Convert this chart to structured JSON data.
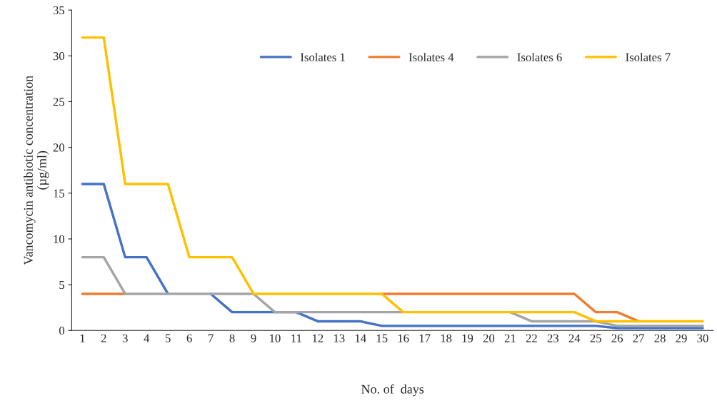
{
  "chart_data": {
    "type": "line",
    "xlabel": "No. of  days",
    "ylabel": "Vancomycin antibiotic concentration\n(µg/ml)",
    "categories": [
      "1",
      "2",
      "3",
      "4",
      "5",
      "6",
      "7",
      "8",
      "9",
      "10",
      "11",
      "12",
      "13",
      "14",
      "15",
      "16",
      "17",
      "18",
      "19",
      "20",
      "21",
      "22",
      "23",
      "24",
      "25",
      "26",
      "27",
      "28",
      "29",
      "30"
    ],
    "series": [
      {
        "name": "Isolates 1",
        "color": "#4472c4",
        "values": [
          16,
          16,
          8,
          8,
          4,
          null,
          4,
          2,
          2,
          2,
          2,
          1,
          1,
          1,
          0.5,
          0.5,
          0.5,
          0.5,
          0.5,
          0.5,
          0.5,
          0.5,
          0.5,
          0.5,
          0.5,
          0.25,
          0.25,
          0.25,
          0.25,
          0.25
        ]
      },
      {
        "name": "Isolates 4",
        "color": "#ed7d31",
        "values": [
          4,
          4,
          4,
          null,
          null,
          null,
          null,
          null,
          null,
          null,
          null,
          null,
          null,
          null,
          4,
          4,
          4,
          4,
          4,
          4,
          4,
          4,
          4,
          4,
          2,
          2,
          1,
          null,
          null,
          null
        ]
      },
      {
        "name": "Isolates 6",
        "color": "#a5a5a5",
        "values": [
          8,
          8,
          4,
          4,
          4,
          4,
          4,
          4,
          4,
          2,
          2,
          2,
          2,
          2,
          2,
          2,
          null,
          null,
          null,
          null,
          2,
          1,
          1,
          1,
          1,
          0.5,
          0.5,
          0.5,
          0.5,
          0.5
        ]
      },
      {
        "name": "Isolates 7",
        "color": "#ffc000",
        "values": [
          32,
          32,
          16,
          16,
          16,
          8,
          8,
          8,
          4,
          4,
          4,
          4,
          4,
          4,
          4,
          2,
          2,
          2,
          2,
          2,
          2,
          2,
          2,
          2,
          1,
          1,
          1,
          1,
          1,
          1
        ]
      }
    ],
    "ylim": [
      0,
      35
    ],
    "yticks": [
      0,
      5,
      10,
      15,
      20,
      25,
      30,
      35
    ],
    "grid": false,
    "legend": "top right",
    "marker": "none",
    "line_style": "solid"
  }
}
